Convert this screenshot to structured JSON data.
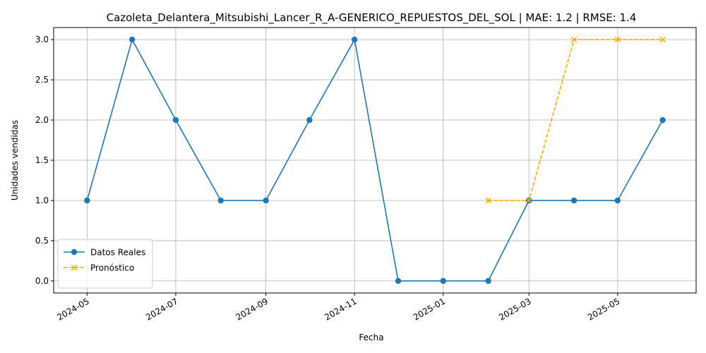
{
  "chart_data": {
    "type": "line",
    "title": "Cazoleta_Delantera_Mitsubishi_Lancer_R_A-GENERICO_REPUESTOS_DEL_SOL | MAE: 1.2 | RMSE: 1.4",
    "xlabel": "Fecha",
    "ylabel": "Unidades vendidas",
    "ylim": [
      -0.15,
      3.15
    ],
    "xlim": [
      "2024-04-08",
      "2025-06-24"
    ],
    "grid": true,
    "legend_position": "lower-left",
    "x_ticks": [
      "2024-05",
      "2024-07",
      "2024-09",
      "2024-11",
      "2025-01",
      "2025-03",
      "2025-05"
    ],
    "y_ticks": [
      "0.0",
      "0.5",
      "1.0",
      "1.5",
      "2.0",
      "2.5",
      "3.0"
    ],
    "series": [
      {
        "name": "Datos Reales",
        "color": "#1f77b4",
        "marker": "circle",
        "linestyle": "solid",
        "x": [
          "2024-05-01",
          "2024-06-01",
          "2024-07-01",
          "2024-08-01",
          "2024-09-01",
          "2024-10-01",
          "2024-11-01",
          "2024-12-01",
          "2025-01-01",
          "2025-02-01",
          "2025-03-01",
          "2025-04-01",
          "2025-05-01",
          "2025-06-01"
        ],
        "values": [
          1,
          3,
          2,
          1,
          1,
          2,
          3,
          0,
          0,
          0,
          1,
          1,
          1,
          2
        ]
      },
      {
        "name": "Pronóstico",
        "color": "#ffa500",
        "marker": "x",
        "linestyle": "dashed",
        "x": [
          "2025-02-01",
          "2025-03-01",
          "2025-04-01",
          "2025-05-01",
          "2025-06-01"
        ],
        "values": [
          1,
          1,
          3,
          3,
          3
        ]
      }
    ]
  }
}
